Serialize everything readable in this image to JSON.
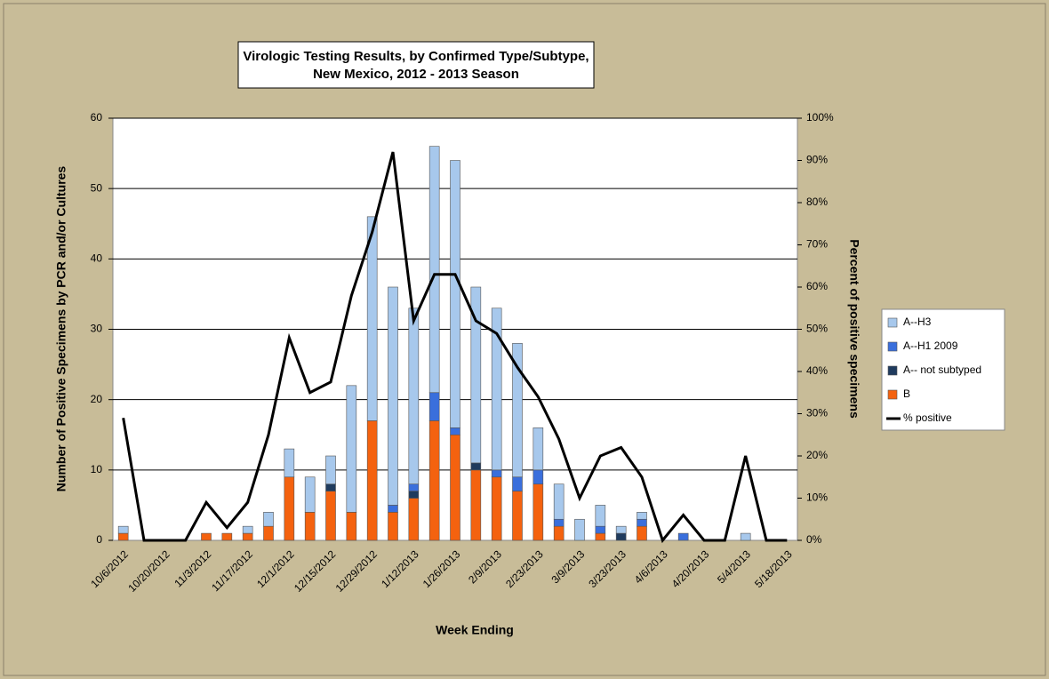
{
  "chart_data": {
    "type": "bar-line",
    "title": [
      "Virologic Testing Results, by Confirmed Type/Subtype,",
      "New Mexico,  2012 - 2013 Season"
    ],
    "x_label": "Week Ending",
    "y_label": "Number of Positive  Specimens by PCR and/or Cultures",
    "y2_label": "Percent of positive specimens",
    "categories": [
      "10/6/2012",
      null,
      "10/20/2012",
      null,
      "11/3/2012",
      null,
      "11/17/2012",
      null,
      "12/1/2012",
      null,
      "12/15/2012",
      null,
      "12/29/2012",
      null,
      "1/12/2013",
      null,
      "1/26/2013",
      null,
      "2/9/2013",
      null,
      "2/23/2013",
      null,
      "3/9/2013",
      null,
      "3/23/2013",
      null,
      "4/6/2013",
      null,
      "4/20/2013",
      null,
      "5/4/2013",
      null,
      "5/18/2013"
    ],
    "series": [
      {
        "name": "B",
        "type": "bar",
        "color": "#f4620f",
        "values": [
          1,
          0,
          0,
          0,
          1,
          1,
          1,
          2,
          9,
          4,
          7,
          4,
          17,
          4,
          6,
          17,
          15,
          10,
          9,
          7,
          8,
          2,
          0,
          1,
          0,
          2,
          0,
          0,
          0,
          0,
          0,
          0,
          0
        ]
      },
      {
        "name": "A-- not subtyped",
        "type": "bar",
        "color": "#1f3b5e",
        "values": [
          0,
          0,
          0,
          0,
          0,
          0,
          0,
          0,
          0,
          0,
          1,
          0,
          0,
          0,
          1,
          0,
          0,
          1,
          0,
          0,
          0,
          0,
          0,
          0,
          1,
          0,
          0,
          0,
          0,
          0,
          0,
          0,
          0
        ]
      },
      {
        "name": "A--H1 2009",
        "type": "bar",
        "color": "#3a6fdc",
        "values": [
          0,
          0,
          0,
          0,
          0,
          0,
          0,
          0,
          0,
          0,
          0,
          0,
          0,
          1,
          1,
          4,
          1,
          0,
          1,
          2,
          2,
          1,
          0,
          1,
          0,
          1,
          0,
          1,
          0,
          0,
          0,
          0,
          0
        ]
      },
      {
        "name": "A--H3",
        "type": "bar",
        "color": "#a7c8ec",
        "values": [
          1,
          0,
          0,
          0,
          0,
          0,
          1,
          2,
          4,
          5,
          4,
          18,
          29,
          31,
          25,
          35,
          38,
          25,
          23,
          19,
          6,
          5,
          3,
          3,
          1,
          1,
          0,
          0,
          0,
          0,
          1,
          0,
          0
        ]
      },
      {
        "name": "% positive",
        "type": "line",
        "axis": "y2",
        "color": "#000000",
        "values": [
          29,
          0,
          0,
          0,
          9,
          3,
          9,
          25,
          48,
          35,
          37.5,
          58,
          73,
          92,
          52,
          63,
          63,
          52,
          49,
          41,
          34,
          24,
          10,
          20,
          22,
          15,
          0,
          6,
          0,
          0,
          20,
          0,
          0
        ]
      }
    ],
    "ylim": [
      0,
      60
    ],
    "yticks": [
      0,
      10,
      20,
      30,
      40,
      50,
      60
    ],
    "y2lim": [
      0,
      100
    ],
    "y2ticks": [
      {
        "value": 0,
        "label": "0%"
      },
      {
        "value": 10,
        "label": "10%"
      },
      {
        "value": 20,
        "label": "20%"
      },
      {
        "value": 30,
        "label": "30%"
      },
      {
        "value": 40,
        "label": "40%"
      },
      {
        "value": 50,
        "label": "50%"
      },
      {
        "value": 60,
        "label": "60%"
      },
      {
        "value": 70,
        "label": "70%"
      },
      {
        "value": 80,
        "label": "80%"
      },
      {
        "value": 90,
        "label": "90%"
      },
      {
        "value": 100,
        "label": "100%"
      }
    ],
    "grid": true
  }
}
